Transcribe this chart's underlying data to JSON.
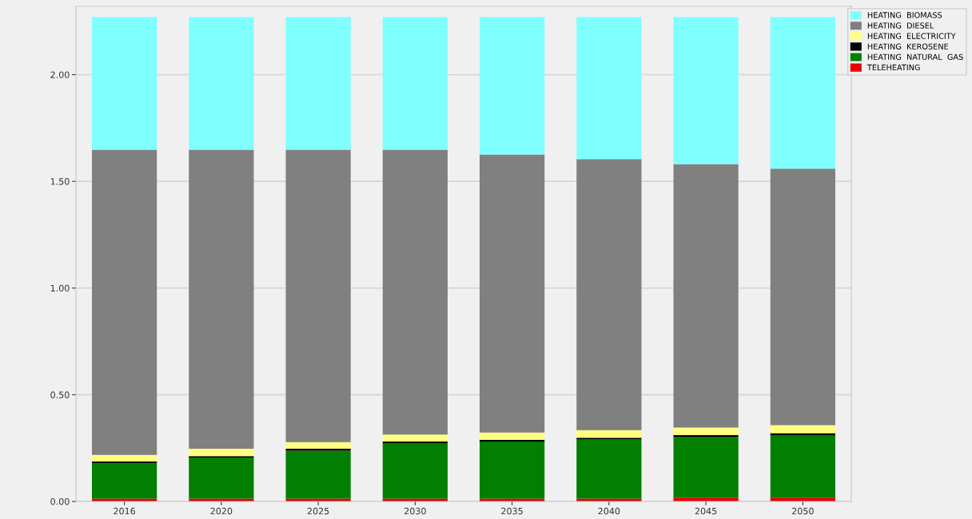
{
  "chart_data": {
    "type": "bar",
    "stacked": true,
    "categories": [
      "2016",
      "2020",
      "2025",
      "2030",
      "2035",
      "2040",
      "2045",
      "2050"
    ],
    "series": [
      {
        "name": "TELEHEATING",
        "color": "#e60000",
        "values": [
          0.013,
          0.013,
          0.013,
          0.013,
          0.013,
          0.013,
          0.018,
          0.018
        ]
      },
      {
        "name": "HEATING  NATURAL  GAS",
        "color": "#007f00",
        "values": [
          0.166,
          0.193,
          0.225,
          0.26,
          0.268,
          0.279,
          0.283,
          0.293
        ]
      },
      {
        "name": "HEATING  KEROSENE",
        "color": "#000000",
        "values": [
          0.008,
          0.006,
          0.009,
          0.008,
          0.008,
          0.006,
          0.01,
          0.009
        ]
      },
      {
        "name": "HEATING  ELECTRICITY",
        "color": "#ffff80",
        "values": [
          0.031,
          0.035,
          0.031,
          0.032,
          0.034,
          0.036,
          0.035,
          0.037
        ]
      },
      {
        "name": "HEATING  DIESEL",
        "color": "#808080",
        "values": [
          1.43,
          1.401,
          1.37,
          1.335,
          1.303,
          1.27,
          1.235,
          1.202
        ]
      },
      {
        "name": "HEATING  BIOMASS",
        "color": "#80ffff",
        "values": [
          0.622,
          0.622,
          0.622,
          0.622,
          0.644,
          0.666,
          0.689,
          0.711
        ]
      }
    ],
    "ylim": [
      0,
      2.32
    ],
    "yticks": [
      {
        "value": 0,
        "label": "0.00"
      },
      {
        "value": 0.5,
        "label": "0.50"
      },
      {
        "value": 1,
        "label": "1.00"
      },
      {
        "value": 1.5,
        "label": "1.50"
      },
      {
        "value": 2,
        "label": "2.00"
      }
    ],
    "grid": "y",
    "legend": "top right"
  }
}
